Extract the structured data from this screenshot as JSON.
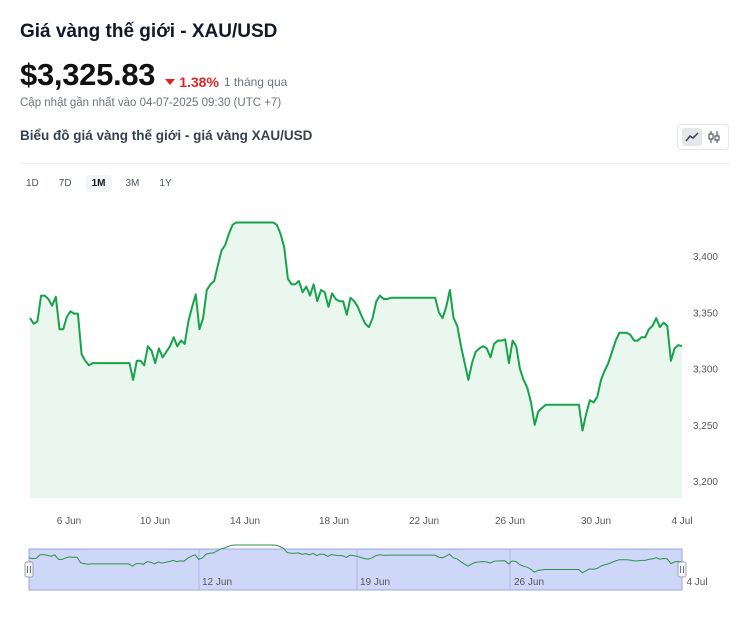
{
  "header": {
    "title": "Giá vàng thế giới - XAU/USD",
    "price": "$3,325.83",
    "change": "1.38%",
    "period": "1 tháng qua",
    "updated": "Cập nhật gần nhất vào 04-07-2025 09:30 (UTC +7)",
    "subtitle": "Biểu đồ giá vàng thế giới - giá vàng XAU/USD"
  },
  "chart_type_buttons": [
    {
      "icon": "line-chart-icon",
      "active": true
    },
    {
      "icon": "candlestick-icon",
      "active": false
    }
  ],
  "ranges": [
    {
      "label": "1D",
      "active": false
    },
    {
      "label": "7D",
      "active": false
    },
    {
      "label": "1M",
      "active": true
    },
    {
      "label": "3M",
      "active": false
    },
    {
      "label": "1Y",
      "active": false
    }
  ],
  "colors": {
    "line": "#16a34a",
    "area": "#eaf7ef",
    "negative": "#dc2626",
    "navigator_fill": "#cfd7f8"
  },
  "chart_data": {
    "type": "area",
    "series": [
      {
        "values": [
          3345,
          3340,
          3342,
          3365,
          3365,
          3362,
          3356,
          3364,
          3335,
          3335,
          3346,
          3351,
          3349,
          3349,
          3313,
          3307,
          3303,
          3305,
          3305,
          3305,
          3305,
          3305,
          3305,
          3305,
          3305,
          3305,
          3305,
          3305,
          3290,
          3307,
          3307,
          3303,
          3320,
          3316,
          3305,
          3318,
          3310,
          3315,
          3320,
          3328,
          3320,
          3325,
          3322,
          3342,
          3355,
          3366,
          3335,
          3345,
          3370,
          3375,
          3378,
          3392,
          3405,
          3410,
          3420,
          3428,
          3430,
          3430,
          3430,
          3430,
          3430,
          3430,
          3430,
          3430,
          3430,
          3430,
          3430,
          3428,
          3420,
          3408,
          3380,
          3375,
          3375,
          3378,
          3368,
          3373,
          3365,
          3375,
          3360,
          3370,
          3368,
          3355,
          3367,
          3362,
          3360,
          3360,
          3348,
          3363,
          3360,
          3355,
          3347,
          3340,
          3337,
          3345,
          3360,
          3365,
          3362,
          3362,
          3363,
          3363,
          3363,
          3363,
          3363,
          3363,
          3363,
          3363,
          3363,
          3363,
          3363,
          3363,
          3363,
          3350,
          3345,
          3355,
          3370,
          3345,
          3338,
          3320,
          3305,
          3290,
          3305,
          3315,
          3318,
          3320,
          3318,
          3310,
          3322,
          3325,
          3325,
          3326,
          3305,
          3325,
          3320,
          3300,
          3290,
          3283,
          3270,
          3250,
          3262,
          3265,
          3268,
          3268,
          3268,
          3268,
          3268,
          3268,
          3268,
          3268,
          3268,
          3268,
          3245,
          3260,
          3272,
          3270,
          3275,
          3290,
          3298,
          3305,
          3315,
          3325,
          3332,
          3332,
          3332,
          3330,
          3325,
          3325,
          3328,
          3328,
          3335,
          3338,
          3345,
          3337,
          3341,
          3338,
          3307,
          3318,
          3321,
          3320
        ]
      }
    ],
    "x_tick_labels": [
      "6 Jun",
      "10 Jun",
      "14 Jun",
      "18 Jun",
      "22 Jun",
      "26 Jun",
      "30 Jun",
      "4 Jul"
    ],
    "y_tick_labels": [
      "3,400",
      "3,350",
      "3,300",
      "3,250",
      "3,200"
    ],
    "y_ticks": [
      3400,
      3350,
      3300,
      3250,
      3200
    ],
    "ylim": [
      3185,
      3450
    ],
    "x_axis": "dates 4 Jun - 4 Jul",
    "grid": false,
    "legend": "none",
    "navigator": {
      "labels": [
        "12 Jun",
        "19 Jun",
        "26 Jun",
        "4 Jul"
      ]
    }
  }
}
